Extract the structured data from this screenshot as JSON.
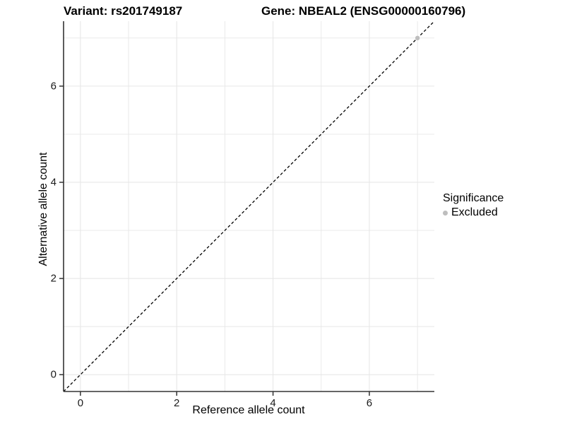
{
  "chart_data": {
    "type": "scatter",
    "title_variant": "Variant: rs201749187",
    "title_gene": "Gene: NBEAL2 (ENSG00000160796)",
    "xlabel": "Reference allele count",
    "ylabel": "Alternative allele count",
    "xlim": [
      -0.35,
      7.35
    ],
    "ylim": [
      -0.35,
      7.35
    ],
    "x_major_ticks": [
      0,
      2,
      4,
      6
    ],
    "y_major_ticks": [
      0,
      2,
      4,
      6
    ],
    "x_minor_gridlines": [
      1,
      3,
      5,
      7
    ],
    "y_minor_gridlines": [
      1,
      3,
      5,
      7
    ],
    "grid": true,
    "reference_line": {
      "type": "identity",
      "style": "dashed",
      "color": "#000000"
    },
    "series": [
      {
        "name": "Excluded",
        "color": "#bebebe",
        "points": [
          [
            7,
            7
          ]
        ]
      }
    ],
    "legend": {
      "title": "Significance",
      "position": "right",
      "items": [
        {
          "label": "Excluded",
          "color": "#bebebe"
        }
      ]
    },
    "colors": {
      "gridline": "#e7e7e7",
      "axis_line": "#333333",
      "tick_mark": "#333333",
      "text": "#000000"
    }
  }
}
